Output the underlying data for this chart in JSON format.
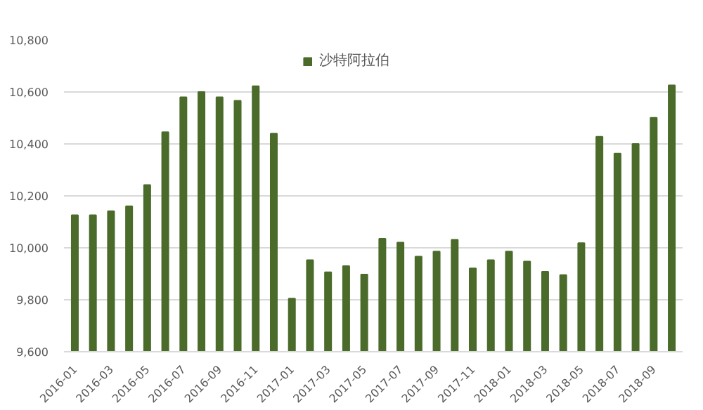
{
  "chart_data": {
    "type": "bar",
    "categories": [
      "2016-01",
      null,
      "2016-03",
      null,
      "2016-05",
      null,
      "2016-07",
      null,
      "2016-09",
      null,
      "2016-11",
      null,
      "2017-01",
      null,
      "2017-03",
      null,
      "2017-05",
      null,
      "2017-07",
      null,
      "2017-09",
      null,
      "2017-11",
      null,
      "2018-01",
      null,
      "2018-03",
      null,
      "2018-05",
      null,
      "2018-07",
      null,
      "2018-09",
      null
    ],
    "series": [
      {
        "name": "沙特阿拉伯",
        "color": "#4a6b2a",
        "values": [
          10126,
          10126,
          10141,
          10160,
          10242,
          10445,
          10580,
          10600,
          10580,
          10566,
          10622,
          10440,
          9805,
          9953,
          9906,
          9930,
          9897,
          10035,
          10020,
          9966,
          9986,
          10031,
          9921,
          9953,
          9986,
          9947,
          9908,
          9895,
          10018,
          10428,
          10363,
          10400,
          10501,
          10626
        ]
      }
    ],
    "ylim": [
      9600,
      10800
    ],
    "yticks": [
      {
        "value": 9600,
        "label": "9,600"
      },
      {
        "value": 9800,
        "label": "9,800"
      },
      {
        "value": 10000,
        "label": "10,000"
      },
      {
        "value": 10200,
        "label": "10,200"
      },
      {
        "value": 10400,
        "label": "10,400"
      },
      {
        "value": 10600,
        "label": "10,600"
      },
      {
        "value": 10800,
        "label": "10,800"
      }
    ],
    "grid": "y",
    "legend": "top"
  }
}
